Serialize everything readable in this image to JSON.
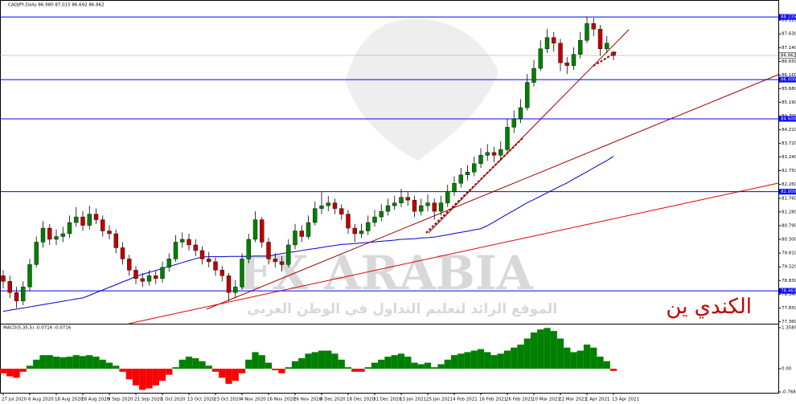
{
  "chart_data": {
    "type": "candlestick",
    "title": "CADJPY,Daily  86.980 87.015 86.692 86.862",
    "up_color": "#008000",
    "down_color": "#c00000",
    "wick_color": "#000000",
    "ylim": [
      77.29,
      88.84
    ],
    "yticks": [
      {
        "value": 88.12,
        "label": "88.120"
      },
      {
        "value": 87.63,
        "label": "87.630"
      },
      {
        "value": 87.14,
        "label": "87.140"
      },
      {
        "value": 86.65,
        "label": "86.650"
      },
      {
        "value": 86.16,
        "label": "86.160"
      },
      {
        "value": 85.68,
        "label": "85.680"
      },
      {
        "value": 85.19,
        "label": "85.190"
      },
      {
        "value": 84.7,
        "label": "84.700"
      },
      {
        "value": 84.21,
        "label": "84.210"
      },
      {
        "value": 83.72,
        "label": "83.720"
      },
      {
        "value": 83.24,
        "label": "83.240"
      },
      {
        "value": 82.75,
        "label": "82.750"
      },
      {
        "value": 82.26,
        "label": "82.260"
      },
      {
        "value": 81.76,
        "label": "81.760"
      },
      {
        "value": 81.28,
        "label": "81.280"
      },
      {
        "value": 80.79,
        "label": "80.790"
      },
      {
        "value": 80.3,
        "label": "80.300"
      },
      {
        "value": 79.81,
        "label": "79.810"
      },
      {
        "value": 79.32,
        "label": "79.320"
      },
      {
        "value": 78.83,
        "label": "78.830"
      },
      {
        "value": 78.34,
        "label": "78.340"
      },
      {
        "value": 77.85,
        "label": "77.850"
      },
      {
        "value": 77.36,
        "label": "77.360"
      }
    ],
    "xticks": [
      {
        "value": 0,
        "label": "27 Jul 2020"
      },
      {
        "value": 4,
        "label": "6 Aug 2020"
      },
      {
        "value": 8,
        "label": "18 Aug 2020"
      },
      {
        "value": 12,
        "label": "28 Aug 2020"
      },
      {
        "value": 16,
        "label": "9 Sep 2020"
      },
      {
        "value": 20,
        "label": "21 Sep 2020"
      },
      {
        "value": 24,
        "label": "1 Oct 2020"
      },
      {
        "value": 28,
        "label": "13 Oct 2020"
      },
      {
        "value": 32,
        "label": "23 Oct 2020"
      },
      {
        "value": 36,
        "label": "4 Nov 2020"
      },
      {
        "value": 40,
        "label": "16 Nov 2020"
      },
      {
        "value": 44,
        "label": "26 Nov 2020"
      },
      {
        "value": 48,
        "label": "8 Dec 2020"
      },
      {
        "value": 52,
        "label": "18 Dec 2020"
      },
      {
        "value": 56,
        "label": "31 Dec 2020"
      },
      {
        "value": 60,
        "label": "13 Jan 2021"
      },
      {
        "value": 64,
        "label": "25 Jan 2021"
      },
      {
        "value": 68,
        "label": "4 Feb 2021"
      },
      {
        "value": 72,
        "label": "16 Feb 2021"
      },
      {
        "value": 76,
        "label": "26 Feb 2021"
      },
      {
        "value": 80,
        "label": "10 Mar 2021"
      },
      {
        "value": 84,
        "label": "22 Mar 2021"
      },
      {
        "value": 88,
        "label": "1 Apr 2021"
      },
      {
        "value": 92,
        "label": "13 Apr 2021"
      }
    ],
    "level_color": "#0000ff",
    "levels": [
      88.235,
      {
        "value": 86,
        "label": "86.000"
      },
      {
        "value": 84.6,
        "label": "84.600"
      },
      {
        "value": 82,
        "label": "82.000"
      },
      78.463
    ],
    "last_price": 86.862,
    "candles": [
      [
        79.0,
        79.2,
        78.55,
        78.8
      ],
      [
        78.8,
        79.0,
        78.2,
        78.4
      ],
      [
        78.4,
        78.6,
        77.85,
        78.1
      ],
      [
        78.1,
        78.8,
        77.95,
        78.6
      ],
      [
        78.6,
        79.6,
        78.45,
        79.4
      ],
      [
        79.4,
        80.4,
        79.3,
        80.2
      ],
      [
        80.2,
        80.95,
        80.0,
        80.7
      ],
      [
        80.7,
        80.85,
        80.1,
        80.3
      ],
      [
        80.3,
        80.65,
        80.1,
        80.4
      ],
      [
        80.4,
        80.75,
        80.2,
        80.5
      ],
      [
        80.5,
        81.15,
        80.35,
        80.9
      ],
      [
        80.9,
        81.45,
        80.75,
        81.1
      ],
      [
        81.1,
        81.3,
        80.6,
        80.8
      ],
      [
        80.8,
        81.5,
        80.65,
        81.2
      ],
      [
        81.2,
        81.4,
        80.85,
        81.0
      ],
      [
        81.0,
        81.15,
        80.4,
        80.6
      ],
      [
        80.6,
        80.8,
        80.3,
        80.5
      ],
      [
        80.5,
        80.65,
        79.8,
        80.0
      ],
      [
        80.0,
        80.2,
        79.4,
        79.6
      ],
      [
        79.6,
        79.75,
        79.0,
        79.2
      ],
      [
        79.2,
        79.35,
        78.7,
        78.9
      ],
      [
        78.9,
        79.1,
        78.6,
        78.8
      ],
      [
        78.8,
        79.2,
        78.65,
        79.0
      ],
      [
        79.0,
        79.2,
        78.7,
        78.9
      ],
      [
        78.9,
        79.5,
        78.75,
        79.3
      ],
      [
        79.3,
        79.8,
        79.15,
        79.6
      ],
      [
        79.6,
        80.45,
        79.5,
        80.2
      ],
      [
        80.2,
        80.55,
        80.0,
        80.3
      ],
      [
        80.3,
        80.5,
        79.9,
        80.1
      ],
      [
        80.1,
        80.3,
        79.7,
        79.9
      ],
      [
        79.9,
        80.05,
        79.4,
        79.6
      ],
      [
        79.6,
        79.85,
        79.3,
        79.5
      ],
      [
        79.5,
        79.65,
        79.0,
        79.2
      ],
      [
        79.2,
        79.35,
        78.8,
        79.0
      ],
      [
        79.0,
        79.1,
        78.1,
        78.4
      ],
      [
        78.4,
        78.85,
        78.2,
        78.6
      ],
      [
        78.6,
        79.8,
        78.5,
        79.6
      ],
      [
        79.6,
        80.5,
        79.45,
        80.3
      ],
      [
        80.3,
        81.3,
        80.2,
        81.0
      ],
      [
        81.0,
        81.1,
        80.0,
        80.2
      ],
      [
        80.2,
        80.35,
        79.4,
        79.6
      ],
      [
        79.6,
        79.8,
        79.3,
        79.5
      ],
      [
        79.5,
        79.7,
        79.15,
        79.4
      ],
      [
        79.4,
        80.3,
        79.3,
        80.1
      ],
      [
        80.1,
        80.85,
        79.95,
        80.6
      ],
      [
        80.6,
        80.8,
        80.2,
        80.4
      ],
      [
        80.4,
        81.15,
        80.3,
        80.9
      ],
      [
        80.9,
        81.65,
        80.8,
        81.4
      ],
      [
        81.4,
        82.0,
        81.2,
        81.5
      ],
      [
        81.5,
        81.85,
        81.3,
        81.6
      ],
      [
        81.6,
        81.75,
        81.2,
        81.4
      ],
      [
        81.4,
        81.55,
        81.0,
        81.2
      ],
      [
        81.2,
        81.35,
        80.5,
        80.7
      ],
      [
        80.7,
        80.85,
        80.2,
        80.5
      ],
      [
        80.5,
        80.85,
        80.35,
        80.6
      ],
      [
        80.6,
        81.15,
        80.45,
        80.9
      ],
      [
        80.9,
        81.35,
        80.75,
        81.1
      ],
      [
        81.1,
        81.55,
        80.95,
        81.3
      ],
      [
        81.3,
        81.75,
        81.15,
        81.5
      ],
      [
        81.5,
        81.85,
        81.35,
        81.6
      ],
      [
        81.6,
        82.1,
        81.45,
        81.8
      ],
      [
        81.8,
        82.0,
        81.5,
        81.7
      ],
      [
        81.7,
        81.85,
        81.1,
        81.3
      ],
      [
        81.3,
        81.75,
        81.15,
        81.5
      ],
      [
        81.5,
        81.9,
        81.3,
        81.6
      ],
      [
        81.6,
        81.75,
        81.0,
        81.3
      ],
      [
        81.3,
        81.85,
        81.15,
        81.6
      ],
      [
        81.6,
        82.25,
        81.45,
        82.0
      ],
      [
        82.0,
        82.55,
        81.85,
        82.3
      ],
      [
        82.3,
        82.85,
        82.15,
        82.6
      ],
      [
        82.6,
        82.95,
        82.4,
        82.7
      ],
      [
        82.7,
        83.25,
        82.55,
        83.0
      ],
      [
        83.0,
        83.55,
        82.85,
        83.3
      ],
      [
        83.3,
        83.7,
        83.1,
        83.4
      ],
      [
        83.4,
        83.6,
        83.05,
        83.3
      ],
      [
        83.3,
        83.8,
        83.1,
        83.5
      ],
      [
        83.5,
        84.6,
        83.4,
        84.3
      ],
      [
        84.3,
        84.9,
        84.1,
        84.6
      ],
      [
        84.6,
        85.3,
        84.45,
        85.0
      ],
      [
        85.0,
        86.2,
        84.9,
        85.9
      ],
      [
        85.9,
        86.7,
        85.75,
        86.4
      ],
      [
        86.4,
        87.4,
        86.3,
        87.1
      ],
      [
        87.1,
        87.8,
        86.95,
        87.5
      ],
      [
        87.5,
        87.7,
        87.0,
        87.3
      ],
      [
        87.3,
        87.45,
        86.3,
        86.6
      ],
      [
        86.6,
        86.8,
        86.2,
        86.5
      ],
      [
        86.5,
        87.15,
        86.35,
        86.9
      ],
      [
        86.9,
        87.7,
        86.75,
        87.4
      ],
      [
        87.4,
        88.25,
        87.3,
        88.0
      ],
      [
        88.0,
        88.2,
        87.55,
        87.8
      ],
      [
        87.8,
        87.95,
        86.85,
        87.1
      ],
      [
        87.1,
        87.55,
        86.95,
        87.3
      ],
      [
        86.98,
        87.015,
        86.692,
        86.862
      ]
    ],
    "ma": {
      "color": "#0000cc",
      "values": [
        77.73,
        77.77,
        77.81,
        77.85,
        77.89,
        77.93,
        77.97,
        78.01,
        78.05,
        78.09,
        78.13,
        78.17,
        78.21,
        78.3,
        78.4,
        78.49,
        78.59,
        78.68,
        78.78,
        78.87,
        78.98,
        79.05,
        79.12,
        79.19,
        79.26,
        79.33,
        79.4,
        79.47,
        79.54,
        79.61,
        79.67,
        79.68,
        79.68,
        79.68,
        79.69,
        79.69,
        79.69,
        79.69,
        79.7,
        79.7,
        79.7,
        79.75,
        79.79,
        79.83,
        79.86,
        79.9,
        79.94,
        79.97,
        80.01,
        80.05,
        80.08,
        80.12,
        80.13,
        80.15,
        80.17,
        80.19,
        80.21,
        80.23,
        80.25,
        80.27,
        80.3,
        80.31,
        80.32,
        80.35,
        80.36,
        80.38,
        80.42,
        80.46,
        80.51,
        80.55,
        80.59,
        80.64,
        80.68,
        80.79,
        80.92,
        81.06,
        81.2,
        81.33,
        81.47,
        81.61,
        81.72,
        81.84,
        81.96,
        82.08,
        82.2,
        82.31,
        82.45,
        82.58,
        82.71,
        82.85,
        82.98,
        83.11,
        83.26
      ]
    },
    "macd": {
      "title": "MACD(5,35,5) -0.0716 -0.0716",
      "pos_color": "#008000",
      "neg_color": "#ff0000",
      "ylim": [
        -0.7686,
        1.3589
      ],
      "yticks": [
        1.3589,
        {
          "value": 0,
          "label": "0.00"
        },
        -0.7686
      ],
      "values": [
        -0.15,
        -0.25,
        -0.3,
        -0.1,
        0.1,
        0.3,
        0.45,
        0.45,
        0.4,
        0.38,
        0.4,
        0.45,
        0.42,
        0.45,
        0.4,
        0.3,
        0.2,
        0.1,
        -0.1,
        -0.35,
        -0.55,
        -0.7,
        -0.65,
        -0.55,
        -0.4,
        -0.2,
        0.05,
        0.3,
        0.4,
        0.35,
        0.25,
        0.1,
        -0.1,
        -0.3,
        -0.5,
        -0.4,
        -0.15,
        0.3,
        0.55,
        0.45,
        0.2,
        -0.05,
        -0.15,
        0.05,
        0.25,
        0.35,
        0.5,
        0.55,
        0.6,
        0.6,
        0.5,
        0.3,
        0.05,
        -0.1,
        -0.1,
        0.05,
        0.2,
        0.3,
        0.4,
        0.45,
        0.5,
        0.4,
        0.2,
        0.15,
        0.2,
        0.05,
        0.15,
        0.3,
        0.45,
        0.5,
        0.55,
        0.6,
        0.65,
        0.55,
        0.45,
        0.5,
        0.6,
        0.7,
        0.8,
        1.0,
        1.2,
        1.3,
        1.35,
        1.25,
        1.0,
        0.7,
        0.55,
        0.6,
        0.8,
        0.7,
        0.4,
        0.25,
        -0.0716
      ]
    },
    "annotations": [
      "FX ARABIA",
      "الموقع الرائد لتعليم التداول في الوطن العربي",
      "الكندي ين"
    ]
  }
}
